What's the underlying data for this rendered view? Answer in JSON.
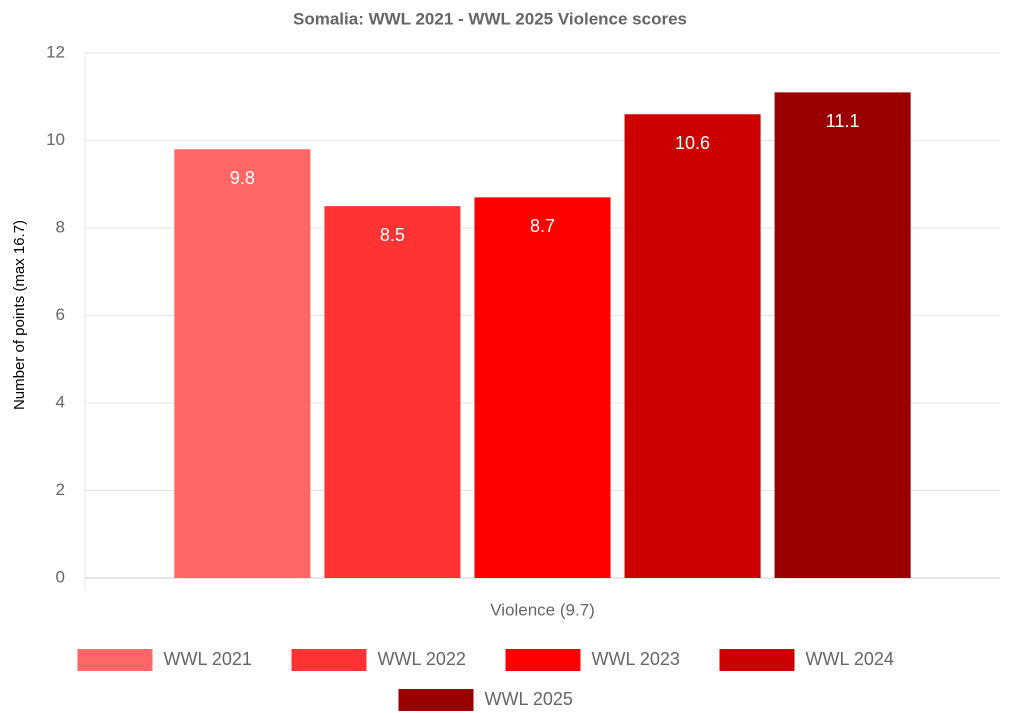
{
  "chart_data": {
    "type": "bar",
    "title": "Somalia: WWL 2021 - WWL 2025 Violence scores",
    "y_label": "Number of points (max 16.7)",
    "categories": [
      "Violence (9.7)"
    ],
    "series": [
      {
        "name": "WWL 2021",
        "color": "#ff6666",
        "values": [
          9.8
        ]
      },
      {
        "name": "WWL 2022",
        "color": "#ff3333",
        "values": [
          8.5
        ]
      },
      {
        "name": "WWL 2023",
        "color": "#ff0000",
        "values": [
          8.7
        ]
      },
      {
        "name": "WWL 2024",
        "color": "#cc0000",
        "values": [
          10.6
        ]
      },
      {
        "name": "WWL 2025",
        "color": "#990000",
        "values": [
          11.1
        ]
      }
    ],
    "ylim": [
      0,
      12
    ],
    "yticks": [
      0,
      2,
      4,
      6,
      8,
      10,
      12
    ],
    "grid": true,
    "legend": "bottom"
  }
}
